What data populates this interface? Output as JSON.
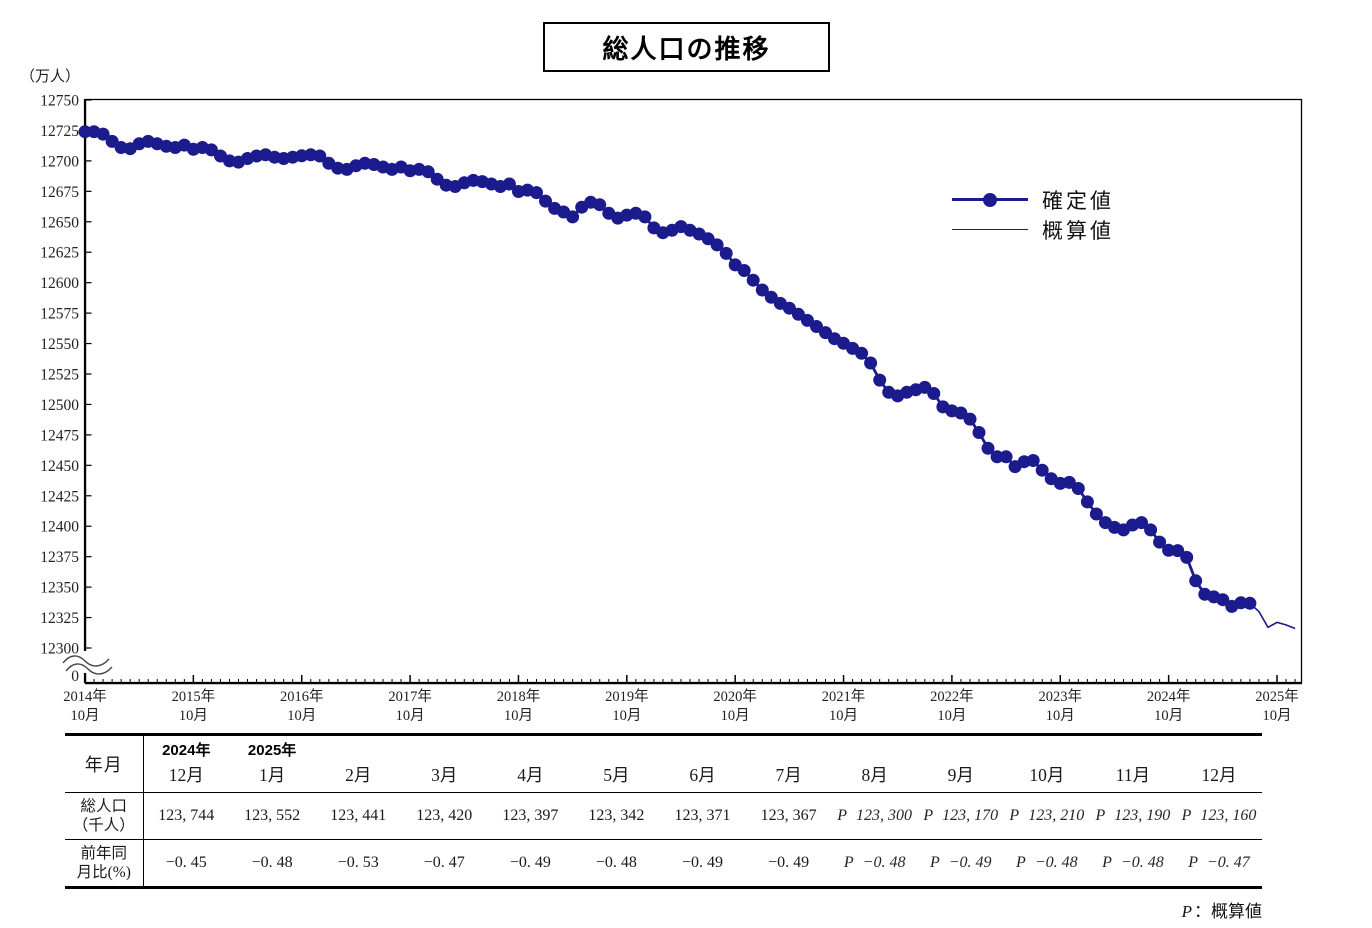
{
  "title": "総人口の推移",
  "unit_label": "（万人）",
  "legend": {
    "confirmed_label": "確定値",
    "preliminary_label": "概算値"
  },
  "footnote": {
    "symbol": "P",
    "separator": "：",
    "label": "概算値"
  },
  "colors": {
    "series_navy": "#1b1b8e",
    "axis_black": "#000000",
    "text": "#1a1a1a"
  },
  "y_axis": {
    "ticks": [
      "12750",
      "12725",
      "12700",
      "12675",
      "12650",
      "12625",
      "12600",
      "12575",
      "12550",
      "12525",
      "12500",
      "12475",
      "12450",
      "12425",
      "12400",
      "12375",
      "12350",
      "12325",
      "12300"
    ],
    "zero_label": "0"
  },
  "x_axis": {
    "labels": [
      {
        "year": "2014年",
        "month": "10月"
      },
      {
        "year": "2015年",
        "month": "10月"
      },
      {
        "year": "2016年",
        "month": "10月"
      },
      {
        "year": "2017年",
        "month": "10月"
      },
      {
        "year": "2018年",
        "month": "10月"
      },
      {
        "year": "2019年",
        "month": "10月"
      },
      {
        "year": "2020年",
        "month": "10月"
      },
      {
        "year": "2021年",
        "month": "10月"
      },
      {
        "year": "2022年",
        "month": "10月"
      },
      {
        "year": "2023年",
        "month": "10月"
      },
      {
        "year": "2024年",
        "month": "10月"
      },
      {
        "year": "2025年",
        "month": "10月"
      }
    ]
  },
  "chart_data": {
    "type": "line",
    "title": "総人口の推移",
    "ylabel": "（万人）",
    "ylim": [
      12300,
      12750
    ],
    "grid": false,
    "legend_position": "upper right",
    "frequency": "monthly",
    "series": [
      {
        "name": "確定値",
        "style": "thick-line-with-markers",
        "start": "2014-10",
        "values": [
          12724,
          12724,
          12722,
          12716,
          12711,
          12710,
          12714,
          12716,
          12714,
          12712,
          12711,
          12713,
          12709.5,
          12711,
          12709,
          12704,
          12700,
          12699,
          12702,
          12704,
          12705,
          12703,
          12702,
          12703,
          12704.2,
          12705,
          12704,
          12698,
          12694,
          12693,
          12696,
          12698,
          12697,
          12695,
          12693,
          12695,
          12691.9,
          12693,
          12691,
          12685,
          12680,
          12679,
          12682,
          12684,
          12683,
          12681,
          12679,
          12681,
          12674.9,
          12676,
          12674,
          12667,
          12661,
          12658,
          12654,
          12662,
          12666,
          12664,
          12657,
          12653,
          12655.5,
          12657,
          12654,
          12645,
          12641,
          12643,
          12646,
          12643,
          12640,
          12636,
          12631,
          12624,
          12614.6,
          12610,
          12602,
          12594,
          12588,
          12583,
          12579,
          12574,
          12569,
          12564,
          12559,
          12554,
          12550.2,
          12546,
          12542,
          12534,
          12520,
          12510,
          12507,
          12510,
          12512,
          12514,
          12509,
          12498,
          12494.7,
          12493,
          12488,
          12477,
          12464,
          12457,
          12457,
          12449,
          12453,
          12454,
          12446,
          12439,
          12435.2,
          12436,
          12431,
          12420,
          12410,
          12403,
          12399,
          12397,
          12401,
          12403,
          12397,
          12387,
          12380.2,
          12380,
          12374.4,
          12355.2,
          12344.1,
          12342,
          12339.7,
          12334.2,
          12337.1,
          12336.7
        ]
      },
      {
        "name": "概算値",
        "style": "thin-line",
        "start": "2025-08",
        "values": [
          12330,
          12317,
          12321,
          12319,
          12316
        ]
      }
    ]
  },
  "table": {
    "corner_label": "年月",
    "year_labels": {
      "0": "2024年",
      "1": "2025年"
    },
    "months": [
      "12月",
      "1月",
      "2月",
      "3月",
      "4月",
      "5月",
      "6月",
      "7月",
      "8月",
      "9月",
      "10月",
      "11月",
      "12月"
    ],
    "rows": [
      {
        "label_lines": [
          "総人口",
          "（千人）"
        ],
        "cells": [
          "123, 744",
          "123, 552",
          "123, 441",
          "123, 420",
          "123, 397",
          "123, 342",
          "123, 371",
          "123, 367",
          "P 123, 300",
          "P 123, 170",
          "P 123, 210",
          "P 123, 190",
          "P 123, 160"
        ]
      },
      {
        "label_lines": [
          "前年同",
          "月比(%)"
        ],
        "cells": [
          "−0. 45",
          "−0. 48",
          "−0. 53",
          "−0. 47",
          "−0. 49",
          "−0. 48",
          "−0. 49",
          "−0. 49",
          "P −0. 48",
          "P −0. 49",
          "P −0. 48",
          "P −0. 48",
          "P −0. 47"
        ]
      }
    ]
  }
}
